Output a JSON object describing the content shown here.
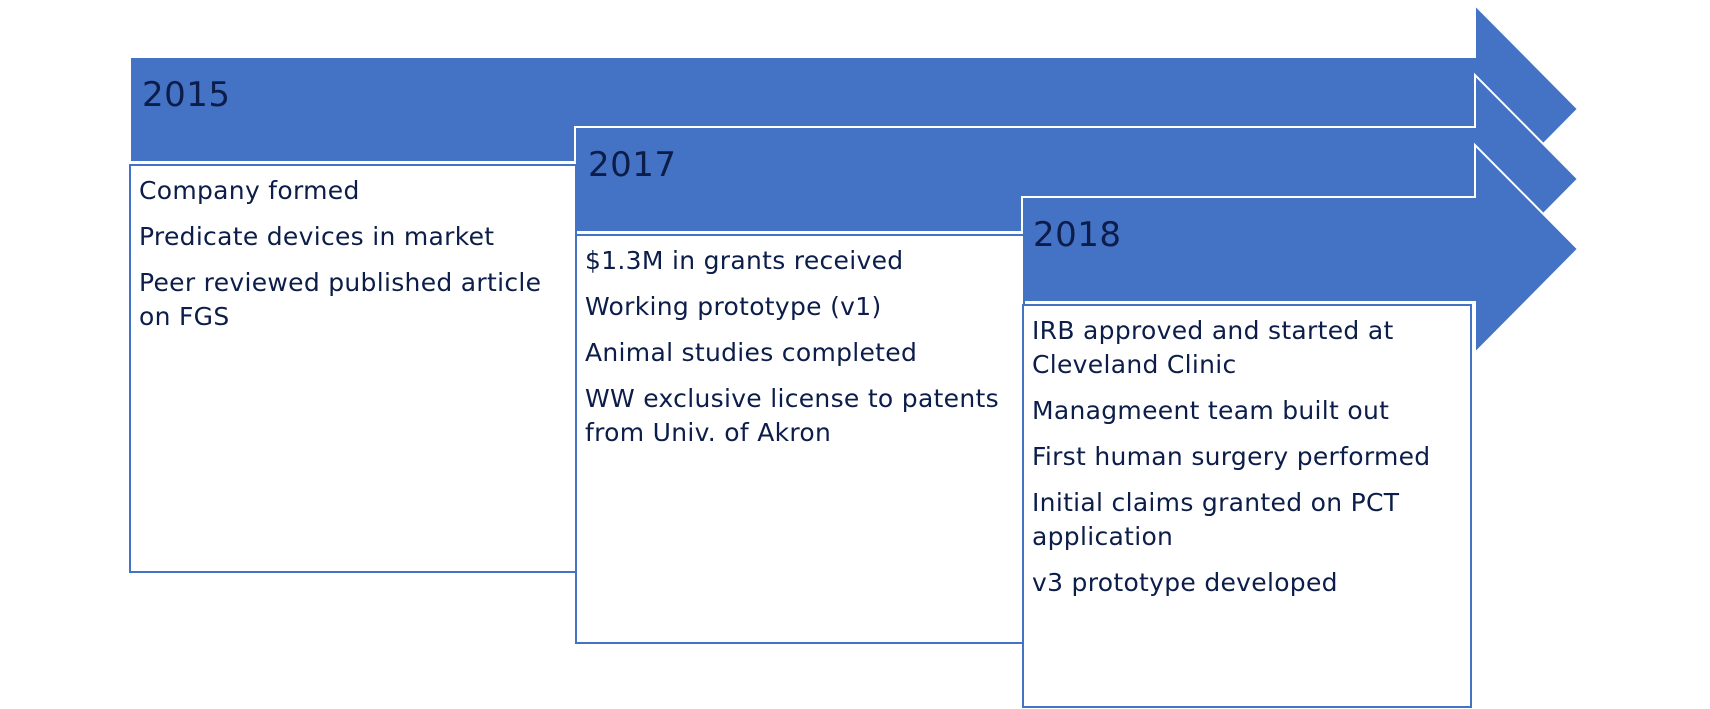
{
  "colors": {
    "arrow_fill": "#4472c4",
    "arrow_outline": "#ffffff",
    "box_border": "#4472c4",
    "text": "#0c1d4a"
  },
  "timeline": [
    {
      "year": "2015",
      "milestones": [
        "Company formed",
        "Predicate devices in market",
        "Peer reviewed published article on FGS"
      ]
    },
    {
      "year": "2017",
      "milestones": [
        "$1.3M in grants received",
        "Working prototype (v1)",
        "Animal studies completed",
        "WW exclusive license to patents from Univ. of Akron"
      ]
    },
    {
      "year": "2018",
      "milestones": [
        "IRB approved and started at Cleveland Clinic",
        "Managmeent team built out",
        "First human surgery performed",
        "Initial claims granted on PCT application",
        "v3 prototype developed"
      ]
    }
  ]
}
